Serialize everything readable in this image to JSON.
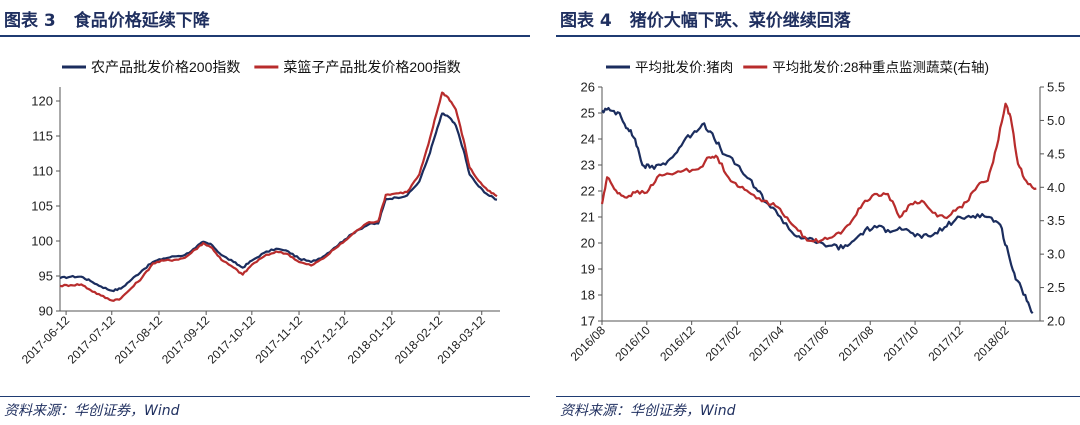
{
  "panels": [
    {
      "title_num": "图表 3",
      "title_text": "食品价格延续下降",
      "source": "资料来源：华创证券，Wind"
    },
    {
      "title_num": "图表 4",
      "title_text": "猪价大幅下跌、菜价继续回落",
      "source": "资料来源：华创证券，Wind"
    }
  ],
  "chart_data": [
    {
      "type": "line",
      "title": "",
      "legend_placement": "top",
      "grid": false,
      "ylim": [
        90,
        122
      ],
      "yticks": [
        90,
        95,
        100,
        105,
        110,
        115,
        120
      ],
      "xlim": [
        "2017-06-08",
        "2018-03-24"
      ],
      "xticks": [
        "2017-06-12",
        "2017-07-12",
        "2017-08-12",
        "2017-09-12",
        "2017-10-12",
        "2017-11-12",
        "2017-12-12",
        "2018-01-12",
        "2018-02-12",
        "2018-03-12"
      ],
      "series": [
        {
          "name": "农产品批发价格200指数",
          "color": "#1b2d5e",
          "points": [
            [
              "2017-06-08",
              94.7
            ],
            [
              "2017-06-15",
              94.9
            ],
            [
              "2017-06-22",
              94.9
            ],
            [
              "2017-06-28",
              94.3
            ],
            [
              "2017-07-05",
              93.5
            ],
            [
              "2017-07-12",
              92.9
            ],
            [
              "2017-07-18",
              93.2
            ],
            [
              "2017-07-25",
              94.5
            ],
            [
              "2017-08-01",
              95.8
            ],
            [
              "2017-08-08",
              97.0
            ],
            [
              "2017-08-15",
              97.5
            ],
            [
              "2017-08-22",
              97.8
            ],
            [
              "2017-08-29",
              98.0
            ],
            [
              "2017-09-05",
              99.0
            ],
            [
              "2017-09-10",
              99.9
            ],
            [
              "2017-09-16",
              99.4
            ],
            [
              "2017-09-22",
              98.0
            ],
            [
              "2017-09-30",
              97.0
            ],
            [
              "2017-10-06",
              96.2
            ],
            [
              "2017-10-12",
              97.2
            ],
            [
              "2017-10-20",
              98.3
            ],
            [
              "2017-10-28",
              98.9
            ],
            [
              "2017-11-05",
              98.5
            ],
            [
              "2017-11-12",
              97.5
            ],
            [
              "2017-11-20",
              97.0
            ],
            [
              "2017-11-28",
              97.8
            ],
            [
              "2017-12-05",
              99.0
            ],
            [
              "2017-12-12",
              100.2
            ],
            [
              "2017-12-20",
              101.5
            ],
            [
              "2017-12-28",
              102.4
            ],
            [
              "2018-01-03",
              102.5
            ],
            [
              "2018-01-08",
              106.0
            ],
            [
              "2018-01-15",
              106.2
            ],
            [
              "2018-01-22",
              106.5
            ],
            [
              "2018-01-30",
              108.5
            ],
            [
              "2018-02-05",
              112.0
            ],
            [
              "2018-02-10",
              115.5
            ],
            [
              "2018-02-14",
              118.2
            ],
            [
              "2018-02-18",
              117.8
            ],
            [
              "2018-02-23",
              116.5
            ],
            [
              "2018-02-28",
              113.0
            ],
            [
              "2018-03-04",
              109.5
            ],
            [
              "2018-03-10",
              107.8
            ],
            [
              "2018-03-16",
              106.6
            ],
            [
              "2018-03-22",
              105.9
            ]
          ]
        },
        {
          "name": "菜篮子产品批发价格200指数",
          "color": "#b82c2c",
          "points": [
            [
              "2017-06-08",
              93.6
            ],
            [
              "2017-06-15",
              93.7
            ],
            [
              "2017-06-22",
              93.8
            ],
            [
              "2017-06-28",
              93.0
            ],
            [
              "2017-07-05",
              92.2
            ],
            [
              "2017-07-12",
              91.5
            ],
            [
              "2017-07-18",
              91.8
            ],
            [
              "2017-07-25",
              93.3
            ],
            [
              "2017-08-01",
              94.8
            ],
            [
              "2017-08-08",
              96.8
            ],
            [
              "2017-08-15",
              97.2
            ],
            [
              "2017-08-22",
              97.3
            ],
            [
              "2017-08-29",
              97.6
            ],
            [
              "2017-09-05",
              98.8
            ],
            [
              "2017-09-10",
              99.7
            ],
            [
              "2017-09-16",
              99.0
            ],
            [
              "2017-09-22",
              97.3
            ],
            [
              "2017-09-30",
              96.2
            ],
            [
              "2017-10-06",
              95.2
            ],
            [
              "2017-10-12",
              96.6
            ],
            [
              "2017-10-20",
              97.8
            ],
            [
              "2017-10-28",
              98.5
            ],
            [
              "2017-11-05",
              98.1
            ],
            [
              "2017-11-12",
              97.0
            ],
            [
              "2017-11-20",
              96.5
            ],
            [
              "2017-11-28",
              97.5
            ],
            [
              "2017-12-05",
              98.8
            ],
            [
              "2017-12-12",
              100.0
            ],
            [
              "2017-12-20",
              101.5
            ],
            [
              "2017-12-28",
              102.7
            ],
            [
              "2018-01-03",
              102.8
            ],
            [
              "2018-01-08",
              106.6
            ],
            [
              "2018-01-15",
              106.8
            ],
            [
              "2018-01-22",
              107.0
            ],
            [
              "2018-01-30",
              109.5
            ],
            [
              "2018-02-05",
              113.8
            ],
            [
              "2018-02-10",
              118.0
            ],
            [
              "2018-02-14",
              121.2
            ],
            [
              "2018-02-18",
              120.5
            ],
            [
              "2018-02-23",
              118.8
            ],
            [
              "2018-02-28",
              114.5
            ],
            [
              "2018-03-04",
              110.5
            ],
            [
              "2018-03-10",
              108.6
            ],
            [
              "2018-03-16",
              107.2
            ],
            [
              "2018-03-22",
              106.4
            ]
          ]
        }
      ]
    },
    {
      "type": "line",
      "title": "",
      "legend_placement": "top",
      "grid": false,
      "ylim": [
        17,
        26
      ],
      "yticks": [
        17,
        18,
        19,
        20,
        21,
        22,
        23,
        24,
        25,
        26
      ],
      "y2lim": [
        2.0,
        5.5
      ],
      "y2ticks": [
        "2.0",
        "2.5",
        "3.0",
        "3.5",
        "4.0",
        "4.5",
        "5.0",
        "5.5"
      ],
      "xlim": [
        "2016-08-01",
        "2018-03-20"
      ],
      "xticks": [
        "2016/08",
        "2016/10",
        "2016/12",
        "2017/02",
        "2017/04",
        "2017/06",
        "2017/08",
        "2017/10",
        "2017/12",
        "2018/02"
      ],
      "series": [
        {
          "name": "平均批发价:猪肉",
          "axis": "left",
          "color": "#1b2d5e",
          "points": [
            [
              "2016-08-01",
              25.1
            ],
            [
              "2016-08-12",
              25.1
            ],
            [
              "2016-08-25",
              25.0
            ],
            [
              "2016-09-05",
              24.4
            ],
            [
              "2016-09-15",
              24.0
            ],
            [
              "2016-09-25",
              23.0
            ],
            [
              "2016-10-05",
              22.9
            ],
            [
              "2016-10-20",
              23.0
            ],
            [
              "2016-11-05",
              23.3
            ],
            [
              "2016-11-20",
              23.9
            ],
            [
              "2016-12-05",
              24.3
            ],
            [
              "2016-12-18",
              24.6
            ],
            [
              "2017-01-01",
              24.0
            ],
            [
              "2017-01-15",
              23.4
            ],
            [
              "2017-02-01",
              23.0
            ],
            [
              "2017-02-15",
              22.5
            ],
            [
              "2017-03-01",
              22.0
            ],
            [
              "2017-03-15",
              21.5
            ],
            [
              "2017-04-01",
              21.0
            ],
            [
              "2017-04-20",
              20.3
            ],
            [
              "2017-05-05",
              20.2
            ],
            [
              "2017-05-20",
              20.0
            ],
            [
              "2017-06-10",
              19.9
            ],
            [
              "2017-06-25",
              19.8
            ],
            [
              "2017-07-10",
              20.1
            ],
            [
              "2017-07-25",
              20.5
            ],
            [
              "2017-08-10",
              20.6
            ],
            [
              "2017-08-25",
              20.5
            ],
            [
              "2017-09-10",
              20.6
            ],
            [
              "2017-09-25",
              20.4
            ],
            [
              "2017-10-10",
              20.2
            ],
            [
              "2017-10-25",
              20.3
            ],
            [
              "2017-11-10",
              20.6
            ],
            [
              "2017-11-25",
              20.9
            ],
            [
              "2017-12-10",
              21.0
            ],
            [
              "2017-12-25",
              21.1
            ],
            [
              "2018-01-10",
              21.0
            ],
            [
              "2018-01-25",
              20.7
            ],
            [
              "2018-02-05",
              19.6
            ],
            [
              "2018-02-15",
              18.6
            ],
            [
              "2018-02-28",
              18.0
            ],
            [
              "2018-03-10",
              17.3
            ]
          ]
        },
        {
          "name": "平均批发价:28种重点监测蔬菜(右轴)",
          "axis": "right",
          "color": "#b82c2c",
          "points": [
            [
              "2016-08-01",
              3.75
            ],
            [
              "2016-08-08",
              4.15
            ],
            [
              "2016-08-20",
              3.95
            ],
            [
              "2016-09-01",
              3.85
            ],
            [
              "2016-09-15",
              3.92
            ],
            [
              "2016-10-01",
              3.92
            ],
            [
              "2016-10-15",
              4.15
            ],
            [
              "2016-11-01",
              4.2
            ],
            [
              "2016-11-20",
              4.25
            ],
            [
              "2016-12-10",
              4.27
            ],
            [
              "2016-12-25",
              4.45
            ],
            [
              "2017-01-05",
              4.45
            ],
            [
              "2017-01-20",
              4.15
            ],
            [
              "2017-02-05",
              4.0
            ],
            [
              "2017-02-20",
              3.9
            ],
            [
              "2017-03-10",
              3.8
            ],
            [
              "2017-03-25",
              3.72
            ],
            [
              "2017-04-10",
              3.55
            ],
            [
              "2017-04-25",
              3.35
            ],
            [
              "2017-05-10",
              3.2
            ],
            [
              "2017-05-25",
              3.2
            ],
            [
              "2017-06-10",
              3.25
            ],
            [
              "2017-06-25",
              3.35
            ],
            [
              "2017-07-10",
              3.55
            ],
            [
              "2017-07-25",
              3.8
            ],
            [
              "2017-08-10",
              3.9
            ],
            [
              "2017-08-25",
              3.9
            ],
            [
              "2017-09-10",
              3.55
            ],
            [
              "2017-09-25",
              3.75
            ],
            [
              "2017-10-10",
              3.8
            ],
            [
              "2017-10-25",
              3.62
            ],
            [
              "2017-11-10",
              3.55
            ],
            [
              "2017-11-25",
              3.65
            ],
            [
              "2017-12-10",
              3.78
            ],
            [
              "2017-12-25",
              4.02
            ],
            [
              "2018-01-08",
              4.1
            ],
            [
              "2018-01-20",
              4.6
            ],
            [
              "2018-02-01",
              5.25
            ],
            [
              "2018-02-08",
              5.05
            ],
            [
              "2018-02-18",
              4.35
            ],
            [
              "2018-03-01",
              4.1
            ],
            [
              "2018-03-15",
              3.98
            ]
          ]
        }
      ]
    }
  ]
}
